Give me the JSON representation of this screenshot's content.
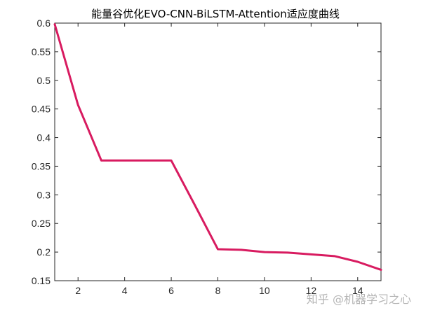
{
  "chart_data": {
    "type": "line",
    "title": "能量谷优化EVO-CNN-BiLSTM-Attention适应度曲线",
    "xlabel": "",
    "ylabel": "",
    "xlim": [
      1,
      15
    ],
    "ylim": [
      0.15,
      0.6
    ],
    "xticks": [
      2,
      4,
      6,
      8,
      10,
      12,
      14
    ],
    "yticks": [
      0.15,
      0.2,
      0.25,
      0.3,
      0.35,
      0.4,
      0.45,
      0.5,
      0.55,
      0.6
    ],
    "grid": false,
    "series": [
      {
        "color": "#d81b60",
        "x": [
          1,
          2,
          3,
          4,
          5,
          6,
          7,
          8,
          9,
          10,
          11,
          12,
          13,
          14,
          15
        ],
        "y": [
          0.598,
          0.457,
          0.36,
          0.36,
          0.36,
          0.36,
          0.283,
          0.205,
          0.204,
          0.2,
          0.199,
          0.196,
          0.193,
          0.183,
          0.169
        ]
      }
    ]
  },
  "watermark": "知乎 @机器学习之心"
}
